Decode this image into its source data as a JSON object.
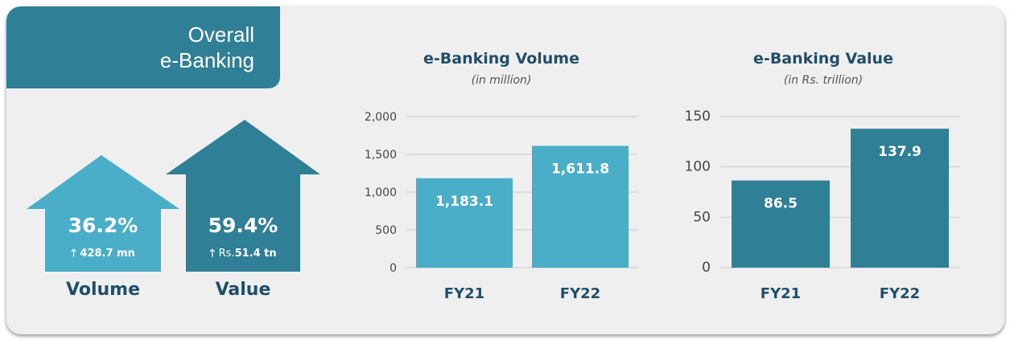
{
  "header": {
    "title_line1": "Overall",
    "title_line2": "e-Banking"
  },
  "summary": {
    "volume": {
      "growth": "36.2%",
      "arrow": "🡑",
      "increase_prefix": "",
      "increase_value": "428.7 mn",
      "label": "Volume",
      "color": "#4aaec8"
    },
    "value": {
      "growth": "59.4%",
      "arrow": "🡑",
      "increase_prefix": "Rs.",
      "increase_value": "51.4 tn",
      "label": "Value",
      "color": "#2f7f96"
    }
  },
  "chart_data": [
    {
      "type": "bar",
      "title": "e-Banking Volume",
      "subtitle": "(in million)",
      "categories": [
        "FY21",
        "FY22"
      ],
      "values": [
        1183.1,
        1611.8
      ],
      "value_labels": [
        "1,183.1",
        "1,611.8"
      ],
      "yticks": [
        "0",
        "500",
        "1,000",
        "1,500",
        "2,000"
      ],
      "ylim": [
        0,
        2000
      ],
      "grid": true,
      "bar_color": "#4aaec8"
    },
    {
      "type": "bar",
      "title": "e-Banking Value",
      "subtitle": "(in Rs. trillion)",
      "categories": [
        "FY21",
        "FY22"
      ],
      "values": [
        86.5,
        137.9
      ],
      "value_labels": [
        "86.5",
        "137.9"
      ],
      "yticks": [
        "0",
        "50",
        "100",
        "150"
      ],
      "ylim": [
        0,
        150
      ],
      "grid": true,
      "bar_color": "#2f7f96"
    }
  ]
}
